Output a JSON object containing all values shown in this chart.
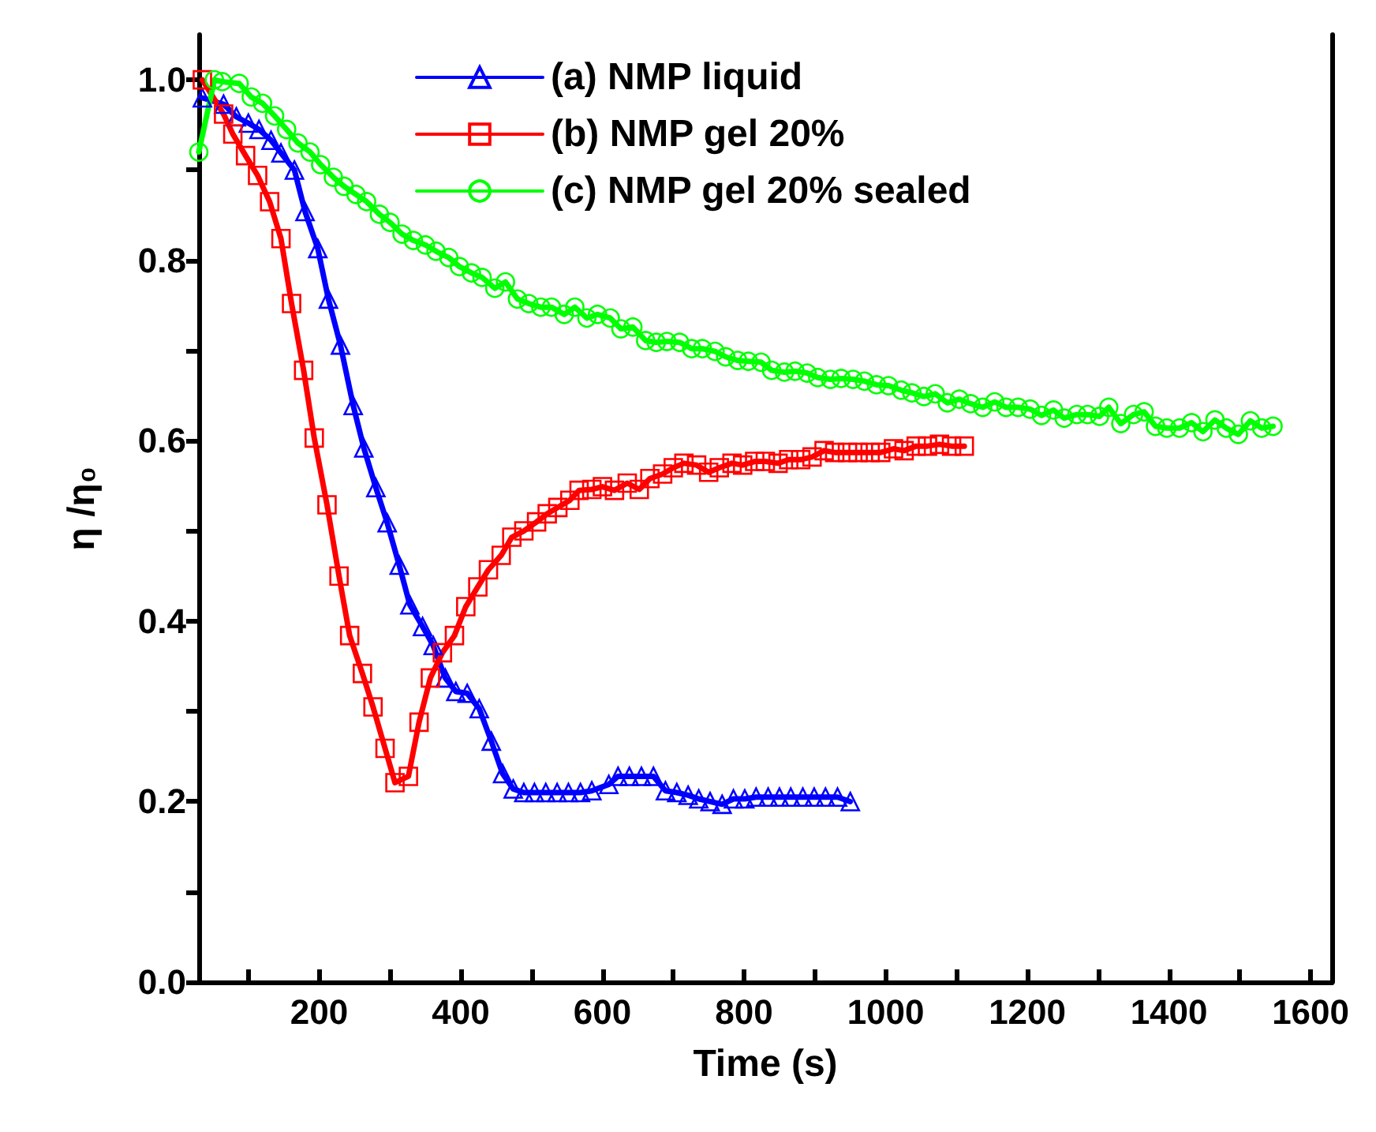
{
  "chart_data": {
    "type": "line",
    "xlabel": "Time (s)",
    "ylabel": "η /η₀",
    "xlim": [
      30,
      1630
    ],
    "ylim": [
      0,
      1.05
    ],
    "xticks": [
      {
        "value": 100,
        "label": null
      },
      200,
      {
        "value": 300,
        "label": null
      },
      400,
      {
        "value": 500,
        "label": null
      },
      600,
      {
        "value": 700,
        "label": null
      },
      800,
      {
        "value": 900,
        "label": null
      },
      1000,
      {
        "value": 1100,
        "label": null
      },
      1200,
      {
        "value": 1300,
        "label": null
      },
      1400,
      {
        "value": 1500,
        "label": null
      },
      1600
    ],
    "yticks": [
      "0.0",
      {
        "value": 0.1,
        "label": null
      },
      {
        "value": 0.2,
        "label": "0.2"
      },
      {
        "value": 0.3,
        "label": null
      },
      {
        "value": 0.4,
        "label": "0.4"
      },
      {
        "value": 0.5,
        "label": null
      },
      {
        "value": 0.6,
        "label": "0.6"
      },
      {
        "value": 0.7,
        "label": null
      },
      {
        "value": 0.8,
        "label": "0.8"
      },
      {
        "value": 0.9,
        "label": null
      },
      {
        "value": 1.0,
        "label": "1.0"
      }
    ],
    "grid": false,
    "legend": "top",
    "tick_labels": true,
    "line_style": "solid",
    "series": [
      {
        "name": "(a) NMP liquid",
        "color": "#0000ff",
        "marker": "triangle",
        "x": [
          35,
          65,
          83,
          100,
          115,
          132,
          146,
          165,
          180,
          198,
          213,
          230,
          248,
          263,
          280,
          296,
          313,
          328,
          346,
          361,
          378,
          393,
          409,
          426,
          443,
          459,
          474,
          489,
          504,
          520,
          536,
          552,
          569,
          585,
          609,
          622,
          638,
          655,
          672,
          689,
          705,
          721,
          736,
          752,
          769,
          785,
          801,
          817,
          834,
          850,
          866,
          883,
          899,
          915,
          932,
          950
        ],
        "values": [
          0.98,
          0.973,
          0.959,
          0.952,
          0.945,
          0.933,
          0.919,
          0.9,
          0.854,
          0.813,
          0.757,
          0.706,
          0.639,
          0.592,
          0.548,
          0.509,
          0.462,
          0.418,
          0.394,
          0.373,
          0.337,
          0.322,
          0.32,
          0.303,
          0.267,
          0.231,
          0.214,
          0.21,
          0.21,
          0.21,
          0.21,
          0.21,
          0.21,
          0.212,
          0.219,
          0.228,
          0.228,
          0.228,
          0.228,
          0.212,
          0.21,
          0.207,
          0.203,
          0.2,
          0.197,
          0.203,
          0.203,
          0.205,
          0.205,
          0.205,
          0.205,
          0.205,
          0.205,
          0.205,
          0.205,
          0.2
        ]
      },
      {
        "name": "(b) NMP gel 20%",
        "color": "#ff0000",
        "marker": "square",
        "x": [
          35,
          65,
          78,
          96,
          113,
          130,
          146,
          161,
          178,
          193,
          211,
          228,
          243,
          261,
          276,
          293,
          307,
          326,
          341,
          357,
          374,
          391,
          407,
          424,
          439,
          457,
          472,
          489,
          507,
          522,
          537,
          554,
          567,
          585,
          600,
          617,
          635,
          652,
          667,
          685,
          700,
          715,
          733,
          750,
          765,
          783,
          798,
          815,
          830,
          848,
          863,
          880,
          896,
          913,
          928,
          946,
          961,
          978,
          993,
          1011,
          1026,
          1043,
          1059,
          1076,
          1093,
          1111
        ],
        "values": [
          1.0,
          0.962,
          0.94,
          0.916,
          0.894,
          0.865,
          0.824,
          0.752,
          0.678,
          0.603,
          0.529,
          0.45,
          0.384,
          0.342,
          0.305,
          0.259,
          0.221,
          0.228,
          0.288,
          0.337,
          0.365,
          0.384,
          0.416,
          0.438,
          0.457,
          0.473,
          0.493,
          0.5,
          0.51,
          0.519,
          0.526,
          0.534,
          0.545,
          0.546,
          0.549,
          0.545,
          0.553,
          0.546,
          0.558,
          0.563,
          0.57,
          0.575,
          0.573,
          0.565,
          0.57,
          0.575,
          0.573,
          0.577,
          0.577,
          0.575,
          0.579,
          0.579,
          0.582,
          0.589,
          0.587,
          0.587,
          0.587,
          0.587,
          0.587,
          0.591,
          0.589,
          0.594,
          0.594,
          0.596,
          0.594,
          0.594
        ]
      },
      {
        "name": "(c) NMP gel 20% sealed",
        "color": "#00ff00",
        "marker": "circle",
        "x": [
          30,
          52,
          63,
          87,
          104,
          120,
          137,
          154,
          170,
          187,
          202,
          220,
          235,
          252,
          267,
          285,
          300,
          317,
          333,
          350,
          365,
          383,
          398,
          415,
          430,
          448,
          463,
          480,
          496,
          513,
          528,
          546,
          561,
          578,
          593,
          611,
          626,
          643,
          661,
          676,
          691,
          709,
          726,
          741,
          759,
          774,
          791,
          806,
          824,
          839,
          857,
          872,
          889,
          904,
          922,
          937,
          954,
          970,
          987,
          1004,
          1022,
          1037,
          1054,
          1070,
          1087,
          1104,
          1120,
          1137,
          1154,
          1170,
          1187,
          1204,
          1220,
          1237,
          1252,
          1270,
          1285,
          1302,
          1315,
          1332,
          1350,
          1365,
          1381,
          1397,
          1415,
          1432,
          1448,
          1465,
          1481,
          1498,
          1515,
          1531,
          1547
        ],
        "values": [
          0.92,
          1.0,
          0.998,
          0.996,
          0.981,
          0.974,
          0.96,
          0.945,
          0.93,
          0.92,
          0.906,
          0.892,
          0.882,
          0.873,
          0.865,
          0.851,
          0.842,
          0.829,
          0.822,
          0.817,
          0.81,
          0.803,
          0.793,
          0.786,
          0.781,
          0.769,
          0.776,
          0.757,
          0.752,
          0.748,
          0.748,
          0.74,
          0.748,
          0.736,
          0.74,
          0.736,
          0.724,
          0.726,
          0.711,
          0.709,
          0.71,
          0.709,
          0.702,
          0.702,
          0.699,
          0.693,
          0.689,
          0.688,
          0.687,
          0.678,
          0.676,
          0.677,
          0.675,
          0.67,
          0.668,
          0.669,
          0.668,
          0.666,
          0.662,
          0.661,
          0.656,
          0.653,
          0.649,
          0.652,
          0.642,
          0.646,
          0.641,
          0.637,
          0.643,
          0.637,
          0.637,
          0.635,
          0.628,
          0.634,
          0.625,
          0.629,
          0.629,
          0.627,
          0.637,
          0.619,
          0.629,
          0.632,
          0.616,
          0.614,
          0.614,
          0.62,
          0.61,
          0.623,
          0.614,
          0.607,
          0.622,
          0.614,
          0.616
        ]
      }
    ]
  }
}
